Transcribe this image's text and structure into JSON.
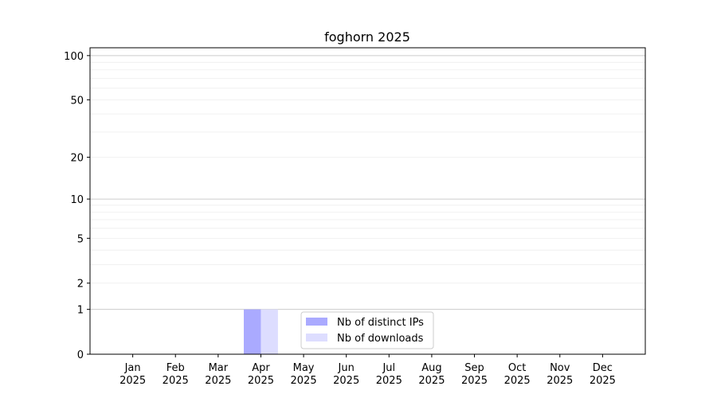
{
  "chart_data": {
    "type": "bar",
    "title": "foghorn 2025",
    "xlabel": "",
    "ylabel": "",
    "categories": [
      "Jan\n2025",
      "Feb\n2025",
      "Mar\n2025",
      "Apr\n2025",
      "May\n2025",
      "Jun\n2025",
      "Jul\n2025",
      "Aug\n2025",
      "Sep\n2025",
      "Oct\n2025",
      "Nov\n2025",
      "Dec\n2025"
    ],
    "series": [
      {
        "name": "Nb of distinct IPs",
        "color": "#aaaaff",
        "values": [
          0,
          0,
          0,
          1,
          0,
          0,
          0,
          0,
          0,
          0,
          0,
          0
        ]
      },
      {
        "name": "Nb of downloads",
        "color": "#ddddff",
        "values": [
          0,
          0,
          0,
          1,
          0,
          0,
          0,
          0,
          0,
          0,
          0,
          0
        ]
      }
    ],
    "y_scale": "log(1+y)",
    "ylim": [
      0,
      113
    ],
    "yticks": [
      0,
      1,
      2,
      5,
      10,
      20,
      50,
      100
    ],
    "grid": true,
    "legend_placement": "lower center"
  }
}
